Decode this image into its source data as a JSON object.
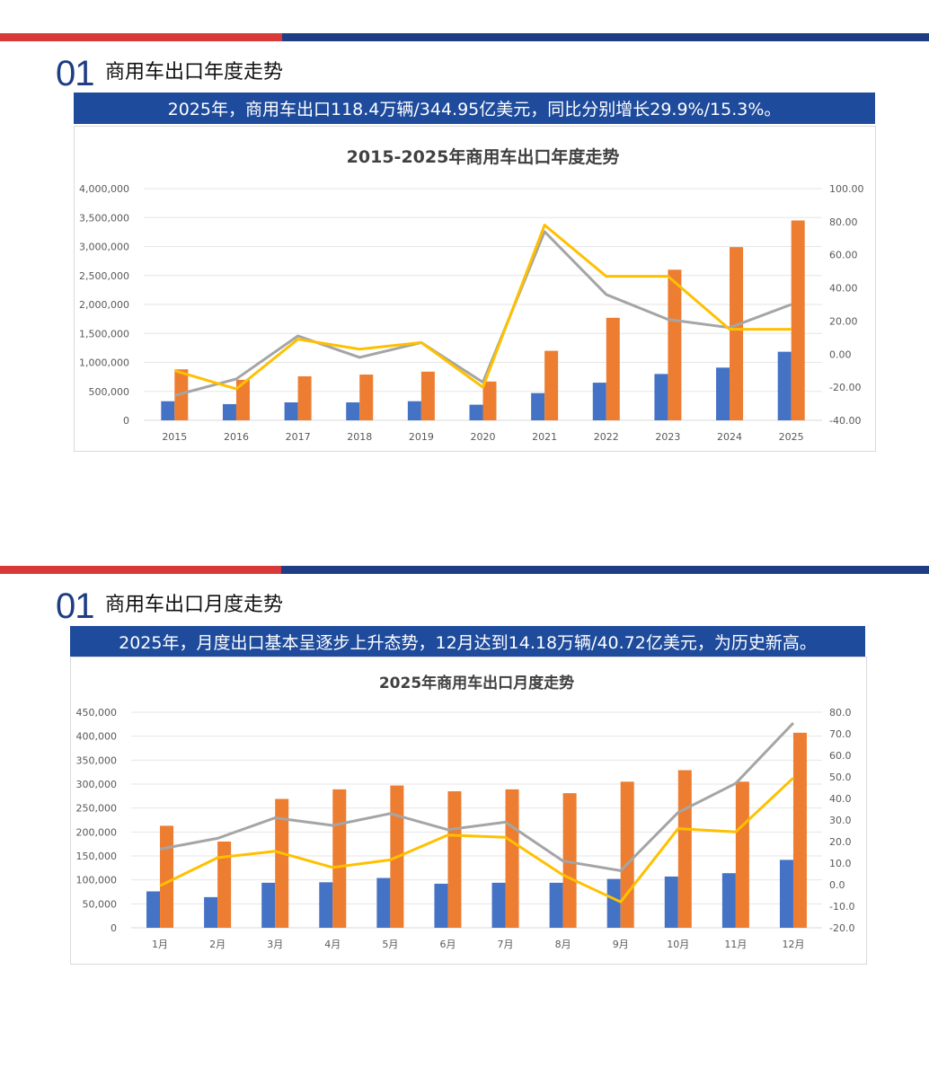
{
  "sections": [
    {
      "number": "01",
      "title": "商用车出口年度走势",
      "banner": "2025年，商用车出口118.4万辆/344.95亿美元，同比分别增长29.9%/15.3%。"
    },
    {
      "number": "01",
      "title": "商用车出口月度走势",
      "banner": "2025年，月度出口基本呈逐步上升态势，12月达到14.18万辆/40.72亿美元，为历史新高。"
    }
  ],
  "colors": {
    "accent_red": "#d83a3a",
    "accent_blue": "#1e3d85",
    "banner_blue": "#1e4b9c",
    "bar_blue": "#4472c4",
    "bar_orange": "#ed7d31",
    "line_gray": "#a5a5a5",
    "line_yellow": "#ffc000"
  },
  "chart_data": [
    {
      "type": "bar",
      "title": "2015-2025年商用车出口年度走势",
      "categories": [
        "2015",
        "2016",
        "2017",
        "2018",
        "2019",
        "2020",
        "2021",
        "2022",
        "2023",
        "2024",
        "2025"
      ],
      "ylim": [
        0,
        4000000
      ],
      "y2lim": [
        -40,
        100
      ],
      "yticks": [
        "0",
        "500,000",
        "1,000,000",
        "1,500,000",
        "2,000,000",
        "2,500,000",
        "3,000,000",
        "3,500,000",
        "4,000,000"
      ],
      "y2ticks": [
        "-40.00",
        "-20.00",
        "0.00",
        "20.00",
        "40.00",
        "60.00",
        "80.00",
        "100.00"
      ],
      "series": [
        {
          "name": "volume",
          "kind": "bar",
          "axis": "left",
          "color": "#4472c4",
          "values": [
            330000,
            280000,
            310000,
            310000,
            330000,
            270000,
            470000,
            650000,
            800000,
            910000,
            1184000
          ]
        },
        {
          "name": "value",
          "kind": "bar",
          "axis": "left",
          "color": "#ed7d31",
          "values": [
            880000,
            700000,
            760000,
            790000,
            840000,
            670000,
            1200000,
            1770000,
            2600000,
            2990000,
            3450000
          ]
        },
        {
          "name": "volume_yoy",
          "kind": "line",
          "axis": "right",
          "color": "#a5a5a5",
          "values": [
            -25,
            -15,
            11,
            -2,
            7,
            -17,
            74,
            36,
            21,
            16,
            30
          ]
        },
        {
          "name": "value_yoy",
          "kind": "line",
          "axis": "right",
          "color": "#ffc000",
          "values": [
            -10,
            -21,
            9,
            3,
            7,
            -20,
            78,
            47,
            47,
            15,
            15
          ]
        }
      ]
    },
    {
      "type": "bar",
      "title": "2025年商用车出口月度走势",
      "categories": [
        "1月",
        "2月",
        "3月",
        "4月",
        "5月",
        "6月",
        "7月",
        "8月",
        "9月",
        "10月",
        "11月",
        "12月"
      ],
      "ylim": [
        0,
        450000
      ],
      "y2lim": [
        -20,
        80
      ],
      "yticks": [
        "0",
        "50,000",
        "100,000",
        "150,000",
        "200,000",
        "250,000",
        "300,000",
        "350,000",
        "400,000",
        "450,000"
      ],
      "y2ticks": [
        "-20.0",
        "-10.0",
        "0.0",
        "10.0",
        "20.0",
        "30.0",
        "40.0",
        "50.0",
        "60.0",
        "70.0",
        "80.0"
      ],
      "series": [
        {
          "name": "volume",
          "kind": "bar",
          "axis": "left",
          "color": "#4472c4",
          "values": [
            76000,
            64000,
            94000,
            95000,
            104000,
            92000,
            94000,
            94000,
            102000,
            107000,
            114000,
            141800
          ]
        },
        {
          "name": "value",
          "kind": "bar",
          "axis": "left",
          "color": "#ed7d31",
          "values": [
            213000,
            180000,
            269000,
            289000,
            297000,
            285000,
            289000,
            281000,
            305000,
            329000,
            305000,
            407200
          ]
        },
        {
          "name": "volume_yoy",
          "kind": "line",
          "axis": "right",
          "color": "#a5a5a5",
          "values": [
            16.5,
            21.5,
            31,
            27.5,
            33,
            25.5,
            29,
            11,
            6.5,
            33.5,
            47,
            75
          ]
        },
        {
          "name": "value_yoy",
          "kind": "line",
          "axis": "right",
          "color": "#ffc000",
          "values": [
            -0.5,
            12.5,
            15.5,
            8,
            11.5,
            23,
            22,
            4.5,
            -8,
            26,
            24.5,
            49.5
          ]
        }
      ]
    }
  ]
}
